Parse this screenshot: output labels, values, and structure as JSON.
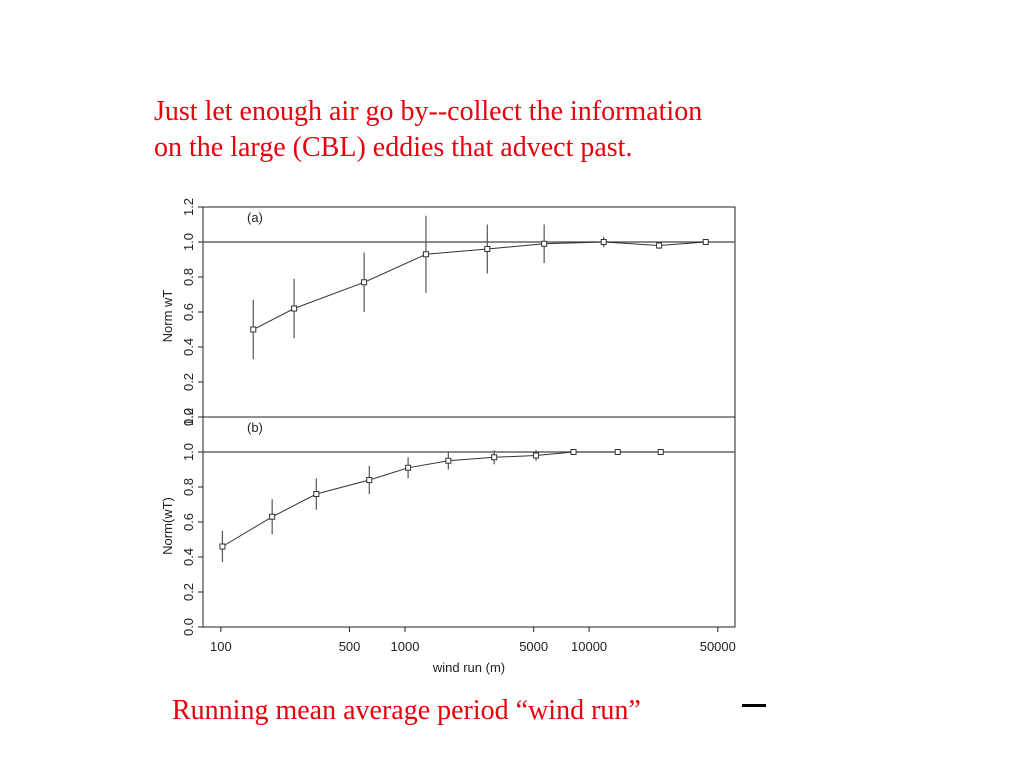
{
  "heading": {
    "line1": "Just let enough air go by--collect the information",
    "line2": "on the large (CBL) eddies that advect past."
  },
  "caption": "Running mean average period “wind run”",
  "colors": {
    "text_accent": "#e8000b",
    "axis": "#222222",
    "reference_line": "#444444"
  },
  "chart_data": [
    {
      "type": "scatter",
      "panel_label": "(a)",
      "ylabel": "Norm wT",
      "xlabel": "",
      "xscale": "log",
      "xlim": [
        80,
        62000
      ],
      "ylim": [
        0.0,
        1.2
      ],
      "yticks": [
        0.0,
        0.2,
        0.4,
        0.6,
        0.8,
        1.0,
        1.2
      ],
      "ytick_labels": [
        "0.0",
        "0.2",
        "0.4",
        "0.6",
        "0.8",
        "1.0",
        "1.2"
      ],
      "reference_line_y": 1.0,
      "x": [
        150,
        250,
        600,
        1300,
        2800,
        5700,
        12000,
        24000,
        43000
      ],
      "y": [
        0.5,
        0.62,
        0.77,
        0.93,
        0.96,
        0.99,
        1.0,
        0.98,
        1.0
      ],
      "err": [
        0.17,
        0.17,
        0.17,
        0.22,
        0.14,
        0.11,
        0.03,
        0.02,
        0.01
      ],
      "grid": false
    },
    {
      "type": "scatter",
      "panel_label": "(b)",
      "ylabel": "Norm(wT)",
      "xlabel": "wind run (m)",
      "xscale": "log",
      "xlim": [
        80,
        62000
      ],
      "ylim": [
        0.0,
        1.2
      ],
      "yticks": [
        0.0,
        0.2,
        0.4,
        0.6,
        0.8,
        1.0,
        1.2
      ],
      "ytick_labels": [
        "0.0",
        "0.2",
        "0.4",
        "0.6",
        "0.8",
        "1.0",
        "1.2"
      ],
      "xticks": [
        100,
        500,
        1000,
        5000,
        10000,
        50000
      ],
      "xtick_labels": [
        "100",
        "500",
        "1000",
        "5000",
        "10000",
        "50000"
      ],
      "reference_line_y": 1.0,
      "x": [
        102,
        190,
        330,
        640,
        1040,
        1720,
        3050,
        5150,
        8230,
        14300,
        24500
      ],
      "y": [
        0.46,
        0.63,
        0.76,
        0.84,
        0.91,
        0.95,
        0.97,
        0.98,
        1.0,
        1.0,
        1.0
      ],
      "err": [
        0.09,
        0.1,
        0.09,
        0.08,
        0.06,
        0.05,
        0.04,
        0.03,
        0.015,
        0.01,
        0.01
      ],
      "grid": false
    }
  ]
}
